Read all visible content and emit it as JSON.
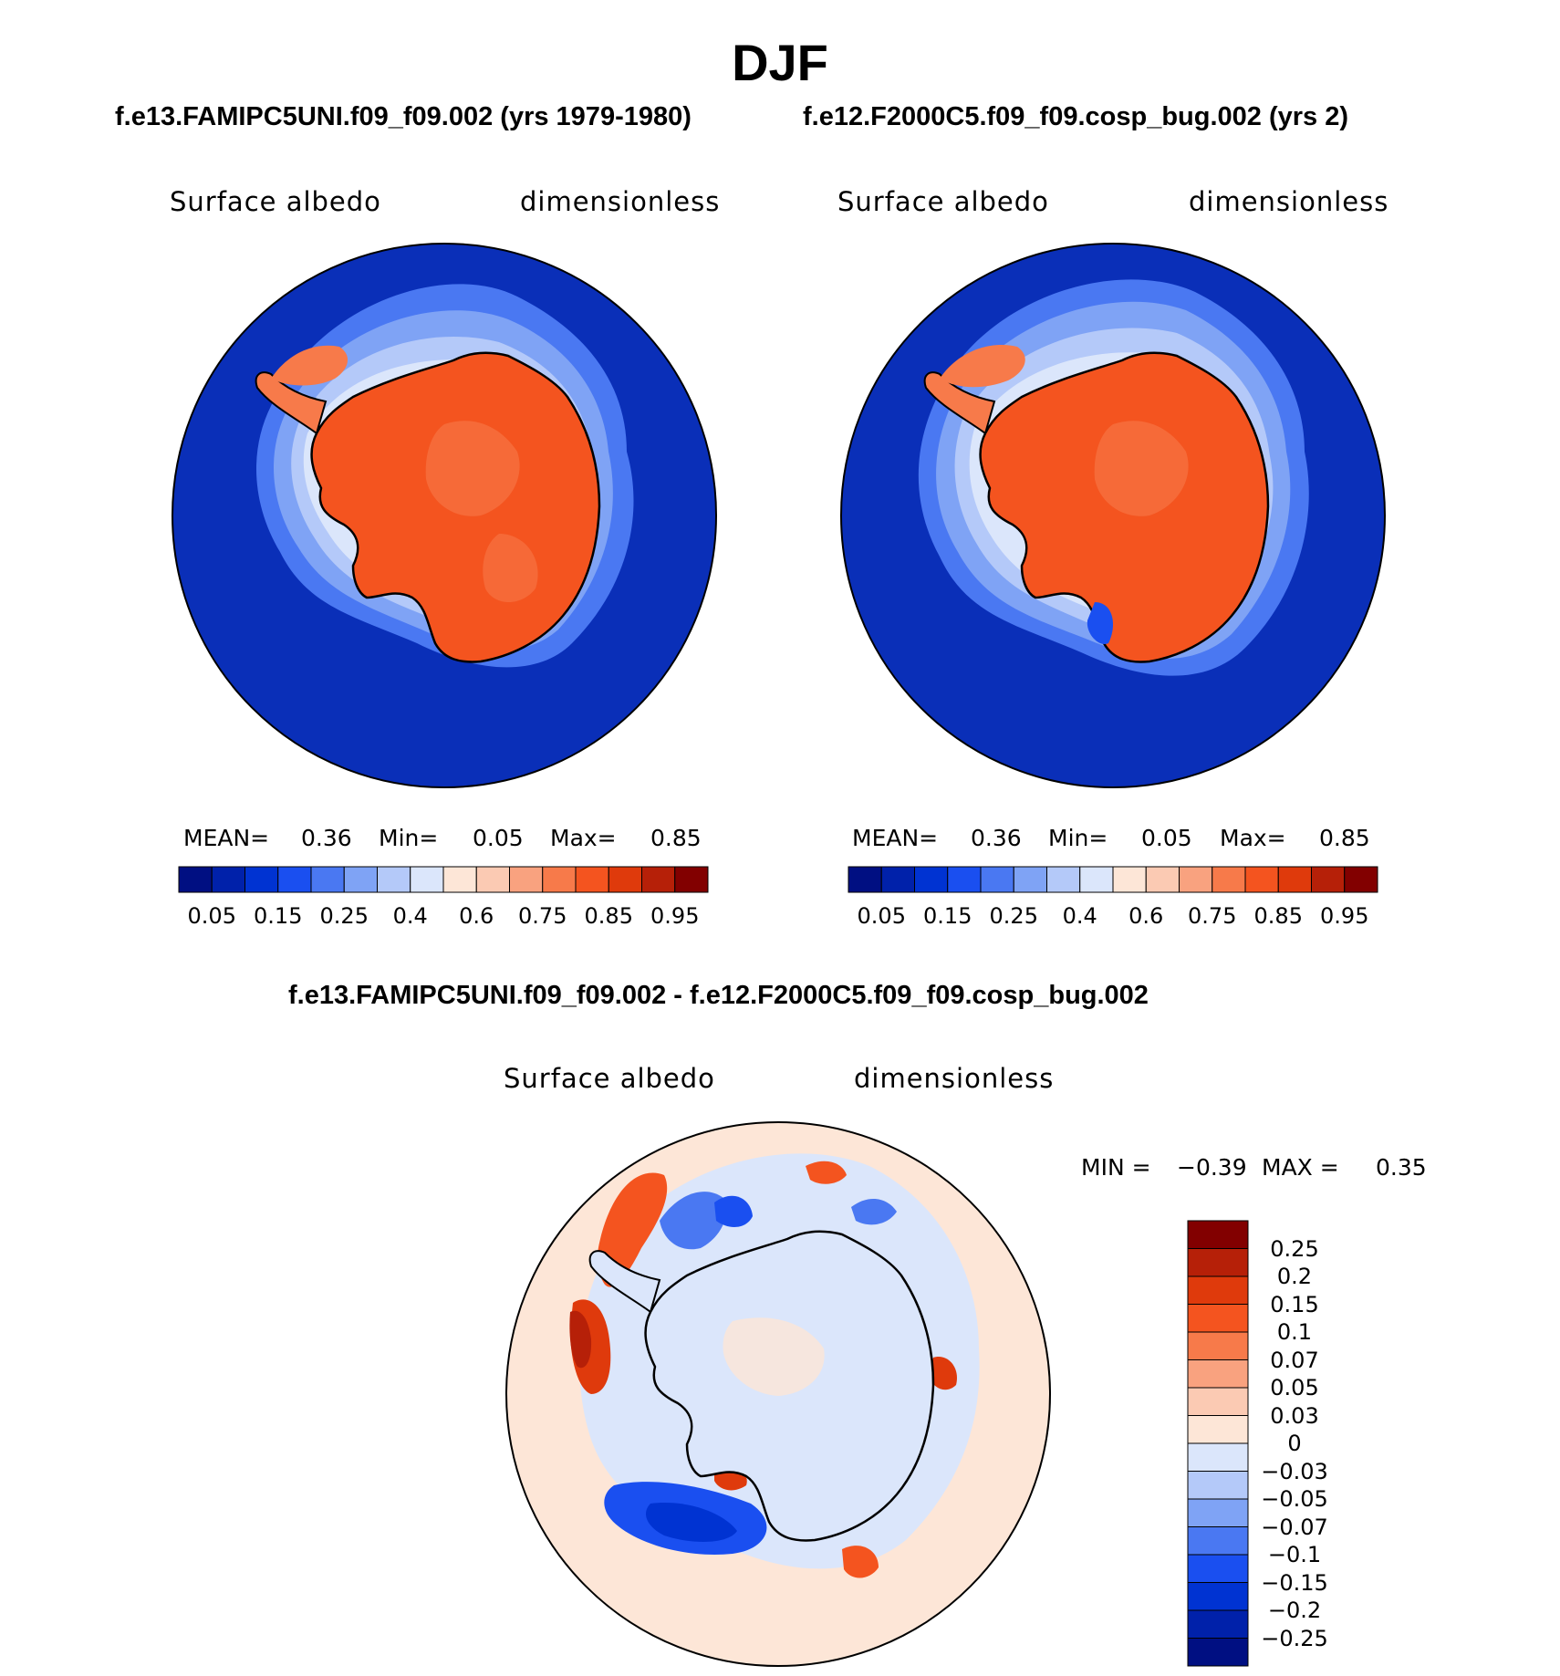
{
  "figure": {
    "title": "DJF",
    "panel_top_left": {
      "case_title": "f.e13.FAMIPC5UNI.f09_f09.002 (yrs 1979-1980)",
      "left_label": "Surface albedo",
      "right_label": "dimensionless",
      "mean_label": "MEAN=",
      "mean_value": "0.36",
      "min_label": "Min=",
      "min_value": "0.05",
      "max_label": "Max=",
      "max_value": "0.85"
    },
    "panel_top_right": {
      "case_title": "f.e12.F2000C5.f09_f09.cosp_bug.002 (yrs 2)",
      "left_label": "Surface albedo",
      "right_label": "dimensionless",
      "mean_label": "MEAN=",
      "mean_value": "0.36",
      "min_label": "Min=",
      "min_value": "0.05",
      "max_label": "Max=",
      "max_value": "0.85"
    },
    "panel_diff": {
      "case_title": "f.e13.FAMIPC5UNI.f09_f09.002 - f.e12.F2000C5.f09_f09.cosp_bug.002",
      "left_label": "Surface albedo",
      "right_label": "dimensionless",
      "min_label": "MIN =",
      "min_value": "−0.39",
      "max_label": "MAX =",
      "max_value": "0.35"
    },
    "abs_colorbar": {
      "tick_labels": [
        "0.05",
        "0.15",
        "0.25",
        "0.4",
        "0.6",
        "0.75",
        "0.85",
        "0.95"
      ],
      "colors": [
        "#000f82",
        "#0021aa",
        "#0033d2",
        "#1a4ff0",
        "#4a78f2",
        "#7fa3f5",
        "#b4c9f9",
        "#dbe6fb",
        "#fde6d7",
        "#fbcab3",
        "#f9a27f",
        "#f77a4a",
        "#f4541f",
        "#df3a0c",
        "#b62008",
        "#820000"
      ]
    },
    "diff_colorbar": {
      "tick_labels": [
        "0.25",
        "0.2",
        "0.15",
        "0.1",
        "0.07",
        "0.05",
        "0.03",
        "0",
        "−0.03",
        "−0.05",
        "−0.07",
        "−0.1",
        "−0.15",
        "−0.2",
        "−0.25"
      ],
      "colors": [
        "#820000",
        "#b62008",
        "#df3a0c",
        "#f4541f",
        "#f77a4a",
        "#f9a27f",
        "#fbcab3",
        "#fde6d7",
        "#dbe6fb",
        "#b4c9f9",
        "#7fa3f5",
        "#4a78f2",
        "#1a4ff0",
        "#0033d2",
        "#0021aa",
        "#000f82"
      ]
    },
    "map_colors": {
      "ocean_low": "#0a2fb8",
      "ice_land": "#f4541f",
      "diff_background": "#fde6d7",
      "coast": "#000000"
    }
  }
}
